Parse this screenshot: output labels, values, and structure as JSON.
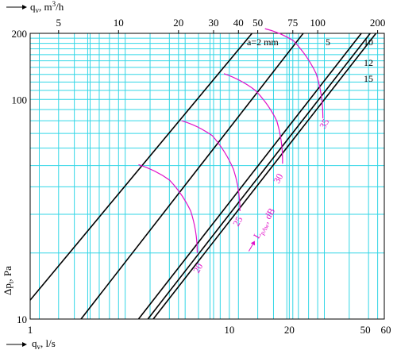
{
  "chart_data": {
    "type": "line",
    "scale": "log-log",
    "grid": true,
    "colors": {
      "grid": "#33d6e6",
      "lines": "#000000",
      "noise_curves": "#e010c8",
      "background": "#ffffff"
    },
    "x_axis": {
      "label_prefix": "q",
      "label_sub": "v",
      "label_suffix": ", l/s",
      "range": [
        1,
        60
      ],
      "tick_labels": [
        {
          "value": 1,
          "label": "1"
        },
        {
          "value": 10,
          "label": "10"
        },
        {
          "value": 20,
          "label": "20"
        },
        {
          "value": 50,
          "label": "50"
        },
        {
          "value": 60,
          "label": "60"
        }
      ]
    },
    "x_axis_top": {
      "label_prefix": "q",
      "label_sub": "v",
      "label_suffix": ", m",
      "label_sup": "3",
      "label_unit_tail": "/h",
      "range_m3h": [
        3.6,
        216
      ],
      "tick_labels": [
        {
          "value": 5,
          "label": "5"
        },
        {
          "value": 10,
          "label": "10"
        },
        {
          "value": 20,
          "label": "20"
        },
        {
          "value": 30,
          "label": "30"
        },
        {
          "value": 40,
          "label": "40"
        },
        {
          "value": 50,
          "label": "50"
        },
        {
          "value": 75,
          "label": "75"
        },
        {
          "value": 100,
          "label": "100"
        },
        {
          "value": 200,
          "label": "200"
        }
      ]
    },
    "y_axis": {
      "label_prefix": "Δp",
      "label_sub": "t",
      "label_suffix": ", Pa",
      "range": [
        10,
        200
      ],
      "tick_labels": [
        {
          "value": 10,
          "label": "10"
        },
        {
          "value": 100,
          "label": "100"
        },
        {
          "value": 200,
          "label": "200"
        }
      ]
    },
    "series": [
      {
        "name": "a=2 mm",
        "points": [
          [
            1,
            12.2
          ],
          [
            13.0,
            200
          ]
        ]
      },
      {
        "name": "5",
        "points": [
          [
            1.8,
            10
          ],
          [
            23.5,
            200
          ]
        ]
      },
      {
        "name": "10",
        "points": [
          [
            3.5,
            10
          ],
          [
            46,
            200
          ]
        ]
      },
      {
        "name": "12",
        "points": [
          [
            3.9,
            10
          ],
          [
            51,
            200
          ]
        ]
      },
      {
        "name": "15",
        "points": [
          [
            4.15,
            10
          ],
          [
            54.5,
            200
          ]
        ]
      }
    ],
    "noise_curves": [
      {
        "label": "20",
        "points": [
          [
            3.5,
            50.5
          ],
          [
            5.0,
            43
          ],
          [
            6.4,
            31
          ],
          [
            6.9,
            20
          ]
        ]
      },
      {
        "label": "25",
        "points": [
          [
            5.75,
            80
          ],
          [
            8.2,
            68.5
          ],
          [
            10.5,
            48
          ],
          [
            11.3,
            31
          ]
        ]
      },
      {
        "label": "30",
        "points": [
          [
            9.4,
            131
          ],
          [
            13.5,
            110
          ],
          [
            17.3,
            80
          ],
          [
            18.5,
            51
          ]
        ]
      },
      {
        "label": "35",
        "points": [
          [
            15.1,
            210
          ],
          [
            21,
            185
          ],
          [
            27.3,
            131
          ],
          [
            29.5,
            82
          ]
        ]
      }
    ],
    "noise_axis_label": {
      "prefix": "L",
      "sub": "pAw",
      "suffix": ", dB"
    }
  }
}
